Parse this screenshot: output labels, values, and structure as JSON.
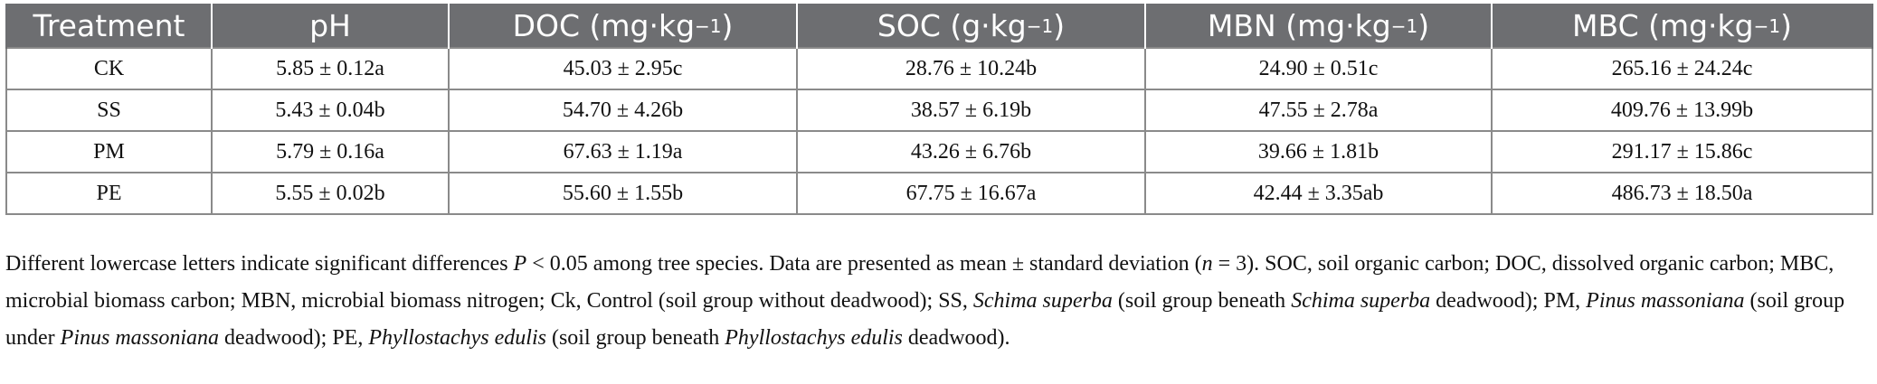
{
  "table": {
    "headers": [
      {
        "label": "Treatment",
        "sup": ""
      },
      {
        "label": "pH",
        "sup": ""
      },
      {
        "label": "DOC (mg·kg",
        "sup": "−1",
        "close": ")"
      },
      {
        "label": "SOC (g·kg",
        "sup": "−1",
        "close": ")"
      },
      {
        "label": "MBN (mg·kg",
        "sup": "−1",
        "close": ")"
      },
      {
        "label": "MBC (mg·kg",
        "sup": "−1",
        "close": ")"
      }
    ],
    "rows": [
      [
        "CK",
        "5.85 ± 0.12a",
        "45.03 ± 2.95c",
        "28.76 ± 10.24b",
        "24.90 ± 0.51c",
        "265.16 ± 24.24c"
      ],
      [
        "SS",
        "5.43 ± 0.04b",
        "54.70 ± 4.26b",
        "38.57 ± 6.19b",
        "47.55 ± 2.78a",
        "409.76 ± 13.99b"
      ],
      [
        "PM",
        "5.79 ± 0.16a",
        "67.63 ± 1.19a",
        "43.26 ± 6.76b",
        "39.66 ± 1.81b",
        "291.17 ± 15.86c"
      ],
      [
        "PE",
        "5.55 ± 0.02b",
        "55.60 ± 1.55b",
        "67.75 ± 16.67a",
        "42.44 ± 3.35ab",
        "486.73 ± 18.50a"
      ]
    ]
  },
  "footnote": {
    "p1": "Different lowercase letters indicate significant differences ",
    "p_symbol": "P",
    "p2": " < 0.05 among tree species. Data are presented as mean ± standard deviation (",
    "n_symbol": "n",
    "p3": " = 3). SOC, soil organic carbon; DOC, dissolved organic carbon; MBC, microbial biomass carbon; MBN, microbial biomass nitrogen; Ck, Control (soil group without deadwood); SS, ",
    "ss_species": "Schima superba",
    "p4": " (soil group beneath ",
    "ss_species_2": "Schima superba",
    "p5": " deadwood); PM, ",
    "pm_species": "Pinus massoniana",
    "p6": " (soil group under ",
    "pm_species_2": "Pinus massoniana",
    "p7": " deadwood); PE, ",
    "pe_species": "Phyllostachys edulis",
    "p8": " (soil group beneath ",
    "pe_species_2": "Phyllostachys edulis",
    "p9": " deadwood)."
  }
}
